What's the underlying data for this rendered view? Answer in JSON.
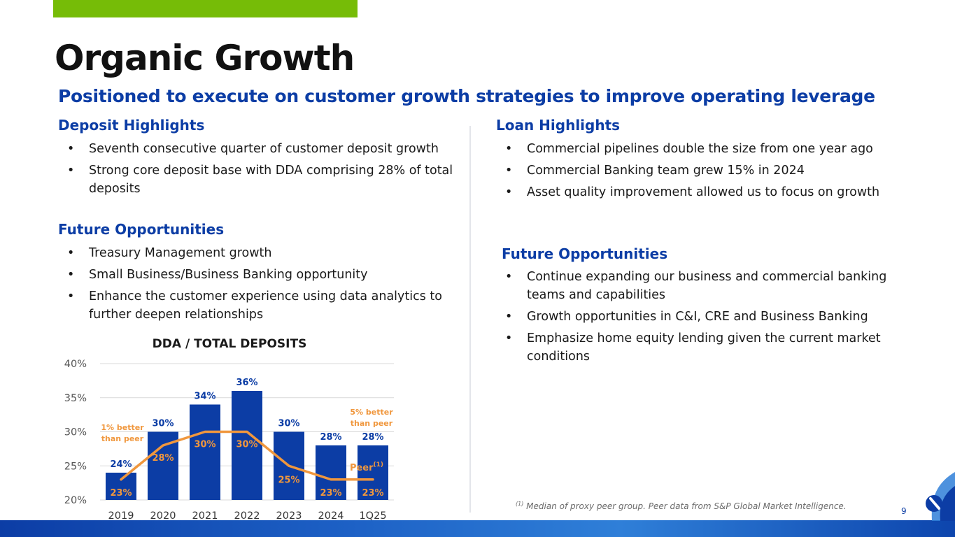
{
  "header": {
    "title": "Organic Growth",
    "subtitle": "Positioned to execute on customer growth strategies to improve operating leverage"
  },
  "left": {
    "deposit_heading": "Deposit Highlights",
    "deposit_items": [
      "Seventh consecutive quarter of customer deposit growth",
      "Strong core deposit base with DDA comprising 28% of total deposits"
    ],
    "future_heading": "Future Opportunities",
    "future_items": [
      "Treasury Management growth",
      "Small Business/Business Banking opportunity",
      "Enhance the customer experience using data analytics to further deepen relationships"
    ]
  },
  "right": {
    "loan_heading": "Loan Highlights",
    "loan_items": [
      "Commercial pipelines double the size from one year ago",
      "Commercial Banking team grew 15% in 2024",
      "Asset quality improvement allowed us to focus on growth"
    ],
    "future_heading": "Future Opportunities",
    "future_items": [
      "Continue expanding our business and commercial banking teams and capabilities",
      "Growth opportunities in C&I, CRE and Business Banking",
      "Emphasize home equity lending given the current market conditions"
    ]
  },
  "chart_data": {
    "type": "bar",
    "title": "DDA / TOTAL DEPOSITS",
    "categories": [
      "2019",
      "2020",
      "2021",
      "2022",
      "2023",
      "2024",
      "1Q25"
    ],
    "series": [
      {
        "values": [
          24,
          30,
          34,
          36,
          30,
          28,
          28
        ],
        "labels": [
          "24%",
          "30%",
          "34%",
          "36%",
          "30%",
          "28%",
          "28%"
        ],
        "color": "#0c3da5",
        "kind": "bar"
      },
      {
        "name": "Peer",
        "values": [
          23,
          28,
          30,
          30,
          25,
          23,
          23
        ],
        "labels": [
          "23%",
          "28%",
          "30%",
          "30%",
          "25%",
          "23%",
          "23%"
        ],
        "color": "#f0973d",
        "kind": "line"
      }
    ],
    "peer_label": "Peer",
    "peer_label_sup": "(1)",
    "ylim": [
      20,
      40
    ],
    "yticks": [
      20,
      25,
      30,
      35,
      40
    ],
    "ytick_labels": [
      "20%",
      "25%",
      "30%",
      "35%",
      "40%"
    ],
    "grid": true,
    "annotations": [
      {
        "category": "2019",
        "lines": [
          "1% better",
          "than peer"
        ]
      },
      {
        "category": "1Q25",
        "lines": [
          "5% better",
          "than peer"
        ]
      }
    ]
  },
  "footer": {
    "footnote_mark": "(1)",
    "footnote_text": " Median of proxy peer group. Peer data from S&P Global Market Intelligence.",
    "page_number": "9"
  },
  "colors": {
    "brand_blue": "#0c3da5",
    "accent_green": "#76bc07",
    "peer_orange": "#f0973d"
  }
}
